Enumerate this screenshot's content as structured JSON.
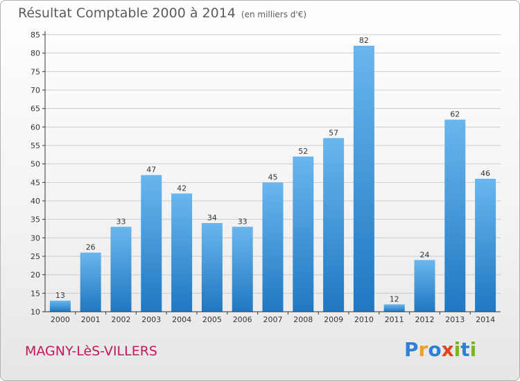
{
  "header": {
    "title": "Résultat Comptable 2000 à 2014",
    "subtitle": "(en milliers d'€)"
  },
  "footer": {
    "commune": "MAGNY-LèS-VILLERS",
    "logo_text": "Proxiti",
    "logo_colors": [
      "#2e7fd6",
      "#f0a020",
      "#2e7fd6",
      "#e0451b",
      "#7ab51d",
      "#2e7fd6",
      "#7ab51d"
    ]
  },
  "colors": {
    "bar_light": "#6ab6ee",
    "bar_dark": "#1f78c1",
    "grid": "#cccccc",
    "axis": "#333333",
    "commune": "#c2185b"
  },
  "chart_data": {
    "type": "bar",
    "categories": [
      "2000",
      "2001",
      "2002",
      "2003",
      "2004",
      "2005",
      "2006",
      "2007",
      "2008",
      "2009",
      "2010",
      "2011",
      "2012",
      "2013",
      "2014"
    ],
    "values": [
      13,
      26,
      33,
      47,
      42,
      34,
      33,
      45,
      52,
      57,
      82,
      12,
      24,
      62,
      46
    ],
    "data_labels": [
      "13",
      "26",
      "33",
      "47",
      "42",
      "34",
      "33",
      "45",
      "52",
      "57",
      "82",
      "12",
      "24",
      "62",
      "46"
    ],
    "title": "Résultat Comptable 2000 à 2014",
    "subtitle": "(en milliers d'€)",
    "xlabel": "",
    "ylabel": "",
    "ylim": [
      10,
      85
    ],
    "yticks": [
      10,
      15,
      20,
      25,
      30,
      35,
      40,
      45,
      50,
      55,
      60,
      65,
      70,
      75,
      80,
      85
    ],
    "grid": true,
    "legend": "none"
  }
}
